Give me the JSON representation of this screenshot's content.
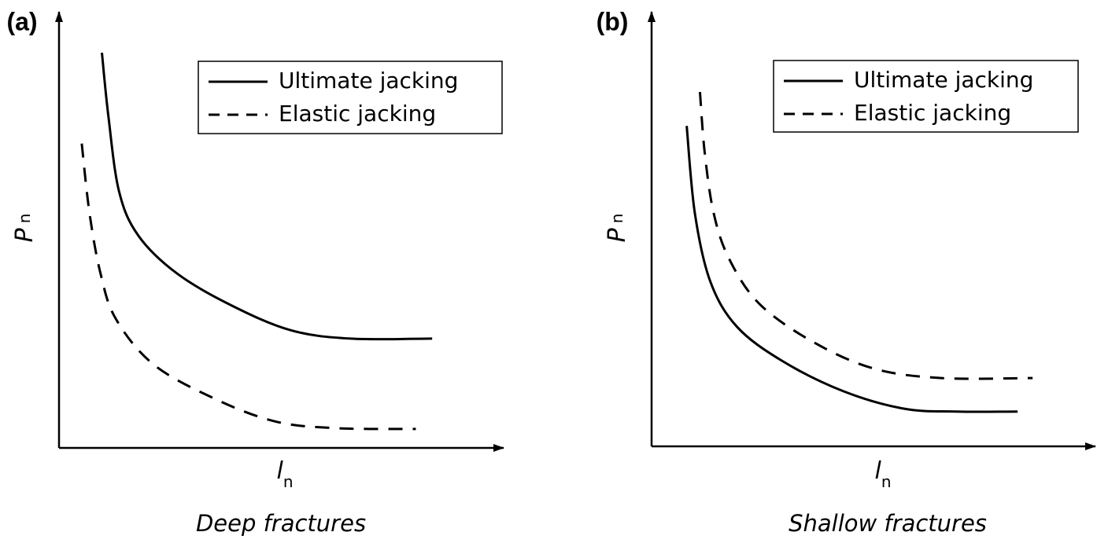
{
  "chart_data": [
    {
      "type": "line",
      "panel_label": "(a)",
      "title": "Deep fractures",
      "ylabel": {
        "text": "P",
        "subscript": "n"
      },
      "xlabel": {
        "text": "l",
        "subscript": "n"
      },
      "xlim": [
        0,
        100
      ],
      "ylim": [
        0,
        100
      ],
      "legend": "upper right",
      "series": [
        {
          "name": "Ultimate jacking",
          "color": "#000000",
          "dash": false,
          "x": [
            10,
            11.5,
            14,
            18.5,
            27.5,
            40,
            54,
            68,
            87
          ],
          "values": [
            94,
            79,
            61,
            50.5,
            41.5,
            34,
            28,
            26,
            26
          ]
        },
        {
          "name": "Elastic jacking",
          "color": "#000000",
          "dash": true,
          "x": [
            5.3,
            7.1,
            9.7,
            13.3,
            22.1,
            36.3,
            50.4,
            64.6,
            83.2
          ],
          "values": [
            72.4,
            55.9,
            41.4,
            30.6,
            19.8,
            11.7,
            6.3,
            4.7,
            4.5
          ]
        }
      ]
    },
    {
      "type": "line",
      "panel_label": "(b)",
      "title": "Shallow fractures",
      "ylabel": {
        "text": "P",
        "subscript": "n"
      },
      "xlabel": {
        "text": "l",
        "subscript": "n"
      },
      "xlim": [
        0,
        100
      ],
      "ylim": [
        0,
        100
      ],
      "legend": "upper right",
      "series": [
        {
          "name": "Ultimate jacking",
          "color": "#000000",
          "dash": false,
          "x": [
            8.2,
            10.1,
            13.7,
            19.9,
            30.5,
            44.7,
            58.9,
            71.3,
            85.5
          ],
          "values": [
            76.5,
            55.7,
            39.4,
            28.6,
            20.4,
            13.2,
            9.0,
            8.3,
            8.3
          ]
        },
        {
          "name": "Elastic jacking",
          "color": "#000000",
          "dash": true,
          "x": [
            11.3,
            12.4,
            14.5,
            18.1,
            25.2,
            37.6,
            51.8,
            67.7,
            89.0
          ],
          "values": [
            84.6,
            70.2,
            55.7,
            44.8,
            34.0,
            25.0,
            18.6,
            16.3,
            16.3
          ]
        }
      ]
    }
  ]
}
